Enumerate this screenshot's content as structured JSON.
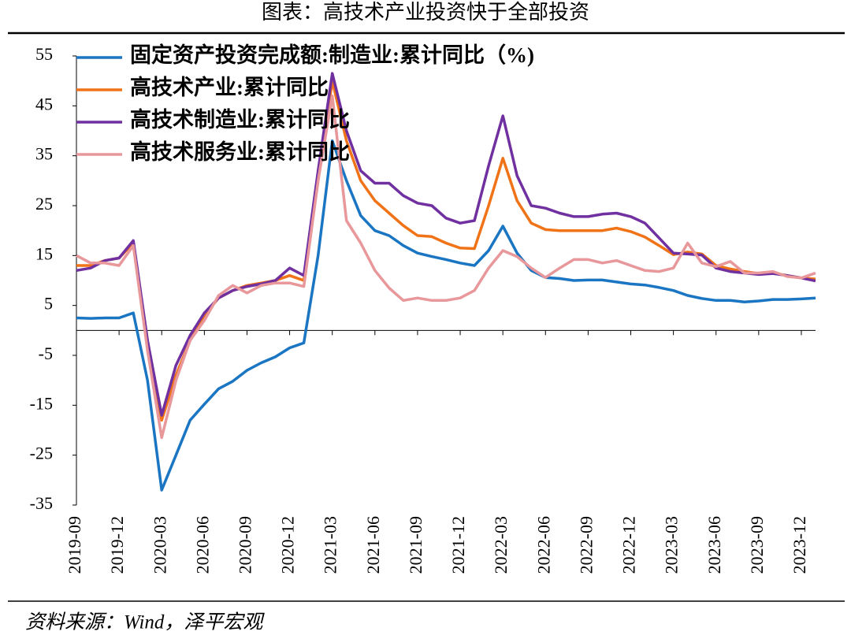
{
  "chart_data": {
    "type": "line",
    "title": "图表：高技术产业投资快于全部投资",
    "source": "资料来源：Wind，泽平宏观",
    "categories": [
      "2019-09",
      null,
      null,
      "2019-12",
      null,
      null,
      "2020-03",
      null,
      null,
      "2020-06",
      null,
      null,
      "2020-09",
      null,
      null,
      "2020-12",
      null,
      null,
      "2021-03",
      null,
      null,
      "2021-06",
      null,
      null,
      "2021-09",
      null,
      null,
      "2021-12",
      null,
      null,
      "2022-03",
      null,
      null,
      "2022-06",
      null,
      null,
      "2022-09",
      null,
      null,
      "2022-12",
      null,
      null,
      "2023-03",
      null,
      null,
      "2023-06",
      null,
      null,
      "2023-09",
      null,
      null,
      "2023-12",
      null
    ],
    "series": [
      {
        "name": "固定资产投资完成额:制造业:累计同比（%)",
        "color": "#1a75c2",
        "values": [
          2.5,
          2.4,
          2.5,
          2.5,
          3.5,
          -10,
          -32,
          -25,
          -18,
          -14.8,
          -11.7,
          -10.2,
          -8,
          -6.5,
          -5.3,
          -3.5,
          -2.5,
          15,
          38,
          30,
          23,
          20,
          19,
          17,
          15.5,
          14.8,
          14.2,
          13.5,
          13,
          16,
          20.9,
          15.5,
          12,
          10.6,
          10.4,
          10,
          10.1,
          10.1,
          9.7,
          9.3,
          9.1,
          8.6,
          8,
          7,
          6.4,
          6,
          6,
          5.7,
          5.9,
          6.2,
          6.2,
          6.3,
          6.5
        ]
      },
      {
        "name": "高技术产业:累计同比",
        "color": "#f07318",
        "values": [
          13,
          13,
          14,
          14.5,
          17.5,
          -2,
          -18,
          -9,
          -2,
          3,
          6.5,
          8,
          9,
          9.5,
          10,
          11,
          10,
          30,
          50,
          38,
          30,
          26,
          23.5,
          21,
          19,
          18.8,
          17.5,
          16.5,
          16.4,
          25,
          34.5,
          26,
          21.5,
          20.2,
          20,
          20,
          20,
          20,
          20.5,
          19.8,
          18.7,
          17,
          15.2,
          15.7,
          15.3,
          13,
          12.3,
          11.8,
          11.4,
          11.5,
          11,
          10.5,
          10.3
        ]
      },
      {
        "name": "高技术制造业:累计同比",
        "color": "#7030a0",
        "values": [
          12,
          12.5,
          14,
          14.5,
          18,
          -2,
          -17,
          -7,
          -1,
          3.5,
          6.5,
          8,
          8.8,
          9.3,
          10,
          12.5,
          11,
          32,
          51.5,
          40,
          32,
          29.5,
          29.5,
          27,
          25.5,
          25,
          22.5,
          21.5,
          22,
          33,
          43,
          31,
          25,
          24.5,
          23.5,
          22.8,
          22.8,
          23.3,
          23.5,
          22.8,
          21.5,
          18.5,
          15.5,
          15.3,
          15.1,
          12.5,
          11.8,
          11.5,
          11.2,
          11.4,
          11,
          10.5,
          9.9
        ]
      },
      {
        "name": "高技术服务业:累计同比",
        "color": "#e8979a",
        "values": [
          15,
          13.5,
          13.5,
          13,
          17,
          -4,
          -21.5,
          -10,
          -2,
          2,
          7,
          9,
          7.5,
          9,
          9.5,
          9.5,
          8.8,
          30,
          47,
          22,
          17.5,
          12,
          8.5,
          6,
          6.5,
          6,
          6,
          6.5,
          8,
          12.5,
          16,
          14.8,
          12.5,
          10.6,
          12.5,
          14.2,
          14.2,
          13.5,
          14,
          13,
          12,
          11.8,
          12.5,
          17.5,
          13.5,
          12.8,
          13.8,
          11.5,
          11.5,
          11.8,
          10.8,
          10.5,
          11.5
        ]
      }
    ],
    "ylim": [
      -35,
      55
    ],
    "yticks": [
      -35,
      -25,
      -15,
      -5,
      5,
      15,
      25,
      35,
      45,
      55
    ],
    "grid": false,
    "legend": "upper left"
  }
}
